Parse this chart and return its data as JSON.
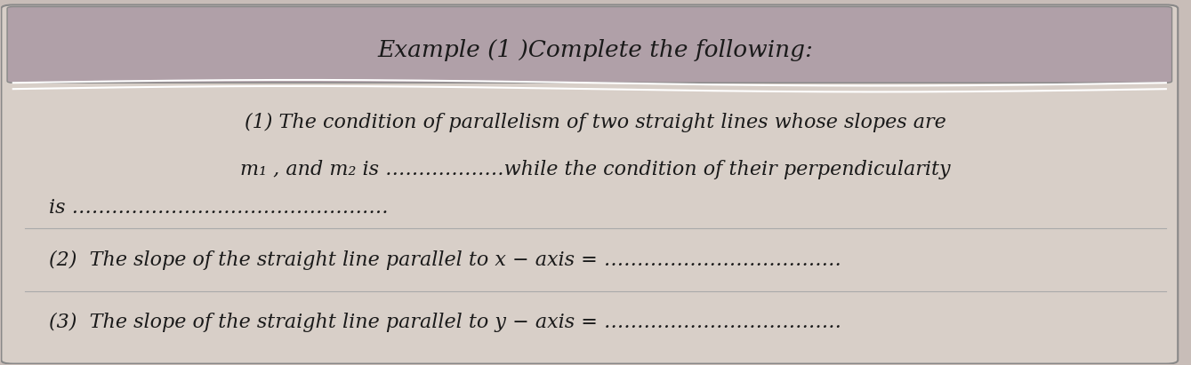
{
  "title": "Example (1 )Complete the following:",
  "header_bg": "#b0a0a8",
  "body_bg": "#d8cfc8",
  "outer_bg": "#c8bdb8",
  "title_color": "#1a1a1a",
  "text_color": "#1a1a1a",
  "line1a": "(1) The condition of parallelism of two straight lines whose slopes are",
  "line1b": "m₁ , and m₂ is ………………while the condition of their perpendicularity",
  "line1c": "is …………………………………………",
  "line2": "(2)  The slope of the straight line parallel to x − axis = ………………………………",
  "line3": "(3)  The slope of the straight line parallel to y − axis = ………………………………",
  "font_size_title": 19,
  "font_size_body": 16,
  "italic_font": "italic"
}
